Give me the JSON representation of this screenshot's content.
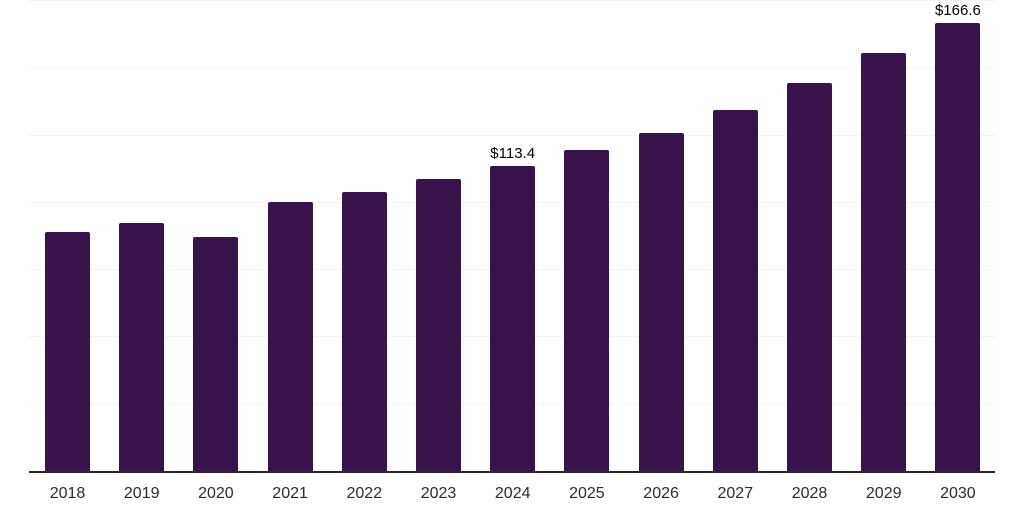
{
  "chart_data": {
    "type": "bar",
    "title": "",
    "xlabel": "",
    "ylabel": "",
    "categories": [
      "2018",
      "2019",
      "2020",
      "2021",
      "2022",
      "2023",
      "2024",
      "2025",
      "2026",
      "2027",
      "2028",
      "2029",
      "2030"
    ],
    "values": [
      88.8,
      92.2,
      87.1,
      99.8,
      103.8,
      108.4,
      113.4,
      119.3,
      125.5,
      134.2,
      144.1,
      155.4,
      166.6
    ],
    "unit_prefix": "$",
    "data_labels": [
      {
        "category": "2024",
        "text": "$113.4"
      },
      {
        "category": "2030",
        "text": "$166.6"
      }
    ],
    "ylim": [
      0,
      175
    ],
    "gridline_step": 25,
    "grid": "horizontal-only",
    "legend": "none",
    "y_axis_tick_labels": "none"
  },
  "colors": {
    "bar": "#36134B",
    "axis_line": "#2a2a2a",
    "gridline": "#f3f3f5",
    "tick_label": "#2b2b2b",
    "data_label": "#000000",
    "background": "#ffffff"
  }
}
